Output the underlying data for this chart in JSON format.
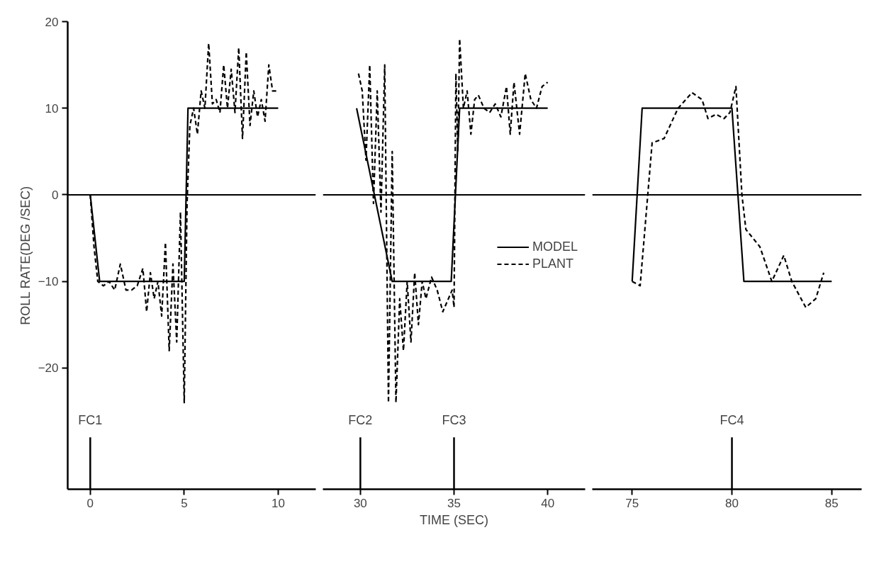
{
  "chart_data": [
    {
      "type": "line",
      "ylabel": "ROLL RATE(DEG /SEC)",
      "xlim": [
        -1.2,
        12
      ],
      "xticks": [
        0,
        5,
        10
      ],
      "ylim": [
        -34,
        20
      ],
      "yticks": [
        -20,
        -10,
        0,
        10,
        20
      ],
      "grid": false,
      "legend": false,
      "ref_lines": [
        {
          "axis": "y",
          "value": 0
        },
        {
          "axis": "x",
          "value": 0,
          "label": "FC1"
        }
      ],
      "series": [
        {
          "color": "#000000",
          "line_style": "solid",
          "x": [
            0,
            0.5,
            5.0,
            5.2,
            10
          ],
          "values": [
            0,
            -10,
            -10,
            10,
            10
          ]
        },
        {
          "color": "#000000",
          "line_style": "dashed",
          "x": [
            0,
            0.2,
            0.4,
            0.7,
            1.0,
            1.3,
            1.6,
            1.9,
            2.2,
            2.5,
            2.8,
            3.0,
            3.2,
            3.4,
            3.6,
            3.8,
            4.0,
            4.2,
            4.4,
            4.6,
            4.8,
            5.0,
            5.15,
            5.3,
            5.5,
            5.7,
            5.9,
            6.1,
            6.3,
            6.5,
            6.7,
            6.9,
            7.1,
            7.3,
            7.5,
            7.7,
            7.9,
            8.1,
            8.3,
            8.5,
            8.7,
            8.9,
            9.1,
            9.3,
            9.5,
            9.7,
            9.9
          ],
          "values": [
            0,
            -6,
            -10,
            -10.5,
            -10,
            -11,
            -8,
            -11,
            -11,
            -10.5,
            -8.5,
            -13.5,
            -9,
            -12,
            -10,
            -14,
            -5.5,
            -18,
            -8,
            -17,
            -2,
            -24,
            -1,
            8,
            10,
            7,
            12,
            10,
            17.5,
            10.5,
            11,
            9.5,
            15,
            10,
            14.5,
            9.5,
            17,
            6.5,
            16.5,
            8,
            12,
            9,
            11,
            8.5,
            15,
            12,
            12
          ]
        }
      ]
    },
    {
      "type": "line",
      "xlabel": "TIME (SEC)",
      "xlim": [
        28,
        42
      ],
      "xticks": [
        30,
        35,
        40
      ],
      "ylim": [
        -34,
        20
      ],
      "tick_labels": "x",
      "grid": false,
      "legend": "right",
      "ref_lines": [
        {
          "axis": "y",
          "value": 0
        },
        {
          "axis": "x",
          "value": 30,
          "label": "FC2"
        },
        {
          "axis": "x",
          "value": 35,
          "label": "FC3"
        }
      ],
      "series": [
        {
          "name": "MODEL",
          "color": "#000000",
          "line_style": "solid",
          "x": [
            29.8,
            31.7,
            34.85,
            35.3,
            40
          ],
          "values": [
            10,
            -10,
            -10,
            10,
            10
          ]
        },
        {
          "name": "PLANT",
          "color": "#000000",
          "line_style": "dashed",
          "x": [
            29.9,
            30.1,
            30.3,
            30.5,
            30.7,
            30.9,
            31.1,
            31.3,
            31.5,
            31.7,
            31.9,
            32.1,
            32.3,
            32.5,
            32.7,
            32.9,
            33.1,
            33.3,
            33.5,
            33.8,
            34.1,
            34.4,
            34.7,
            34.9,
            35.0,
            35.1,
            35.2,
            35.3,
            35.5,
            35.7,
            35.9,
            36.1,
            36.3,
            36.6,
            36.9,
            37.2,
            37.5,
            37.8,
            38.0,
            38.2,
            38.5,
            38.8,
            39.1,
            39.4,
            39.7,
            40
          ],
          "values": [
            14,
            12,
            4,
            15,
            -1,
            12,
            -2,
            15,
            -24,
            5,
            -24,
            -12,
            -18,
            -10,
            -17,
            -9,
            -15,
            -10,
            -12,
            -9.5,
            -11,
            -13.5,
            -12,
            -11,
            -13,
            14,
            5,
            18,
            10,
            12,
            7,
            11,
            11.5,
            10,
            9.5,
            10.5,
            9,
            12.5,
            7,
            13,
            7,
            14,
            11,
            10,
            12.5,
            13
          ]
        }
      ]
    },
    {
      "type": "line",
      "xlim": [
        73,
        86.5
      ],
      "xticks": [
        75,
        80,
        85
      ],
      "ylim": [
        -34,
        20
      ],
      "tick_labels": "x",
      "grid": false,
      "legend": false,
      "ref_lines": [
        {
          "axis": "y",
          "value": 0
        },
        {
          "axis": "x",
          "value": 80,
          "label": "FC4"
        }
      ],
      "series": [
        {
          "color": "#000000",
          "line_style": "solid",
          "x": [
            75,
            75.5,
            80,
            80.6,
            85
          ],
          "values": [
            -10,
            10,
            10,
            -10,
            -10
          ]
        },
        {
          "color": "#000000",
          "line_style": "dashed",
          "x": [
            75,
            75.4,
            76,
            76.6,
            77.3,
            78.0,
            78.5,
            78.8,
            79.2,
            79.6,
            79.9,
            80.2,
            80.5,
            80.7,
            81.4,
            82,
            82.6,
            83,
            83.7,
            84.2,
            84.6
          ],
          "values": [
            -10,
            -10.5,
            6,
            6.5,
            10,
            11.8,
            11,
            8.8,
            9.3,
            8.8,
            9.5,
            12.5,
            0,
            -4,
            -6,
            -10,
            -7,
            -10,
            -13,
            -12,
            -9
          ]
        }
      ]
    }
  ]
}
